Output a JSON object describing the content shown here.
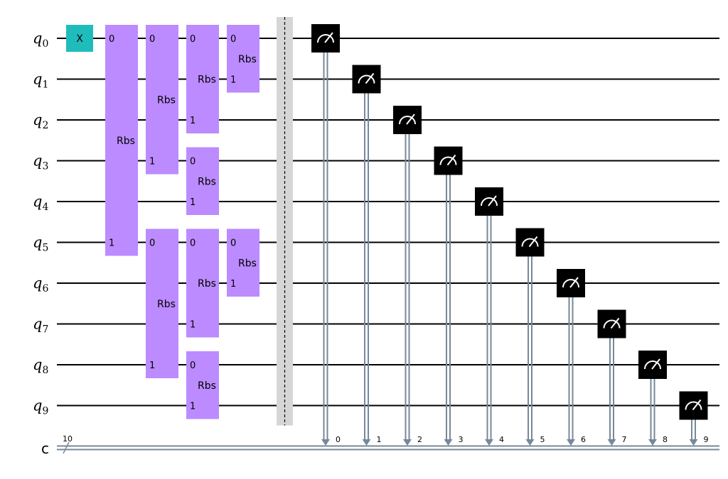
{
  "circuit": {
    "qubits": [
      {
        "name": "q",
        "index": "0"
      },
      {
        "name": "q",
        "index": "1"
      },
      {
        "name": "q",
        "index": "2"
      },
      {
        "name": "q",
        "index": "3"
      },
      {
        "name": "q",
        "index": "4"
      },
      {
        "name": "q",
        "index": "5"
      },
      {
        "name": "q",
        "index": "6"
      },
      {
        "name": "q",
        "index": "7"
      },
      {
        "name": "q",
        "index": "8"
      },
      {
        "name": "q",
        "index": "9"
      }
    ],
    "classical_register": {
      "name": "c",
      "size": "10"
    },
    "x_gate": {
      "label": "X",
      "qubit": 0
    },
    "rbs_gates": [
      {
        "label": "Rbs",
        "top": 0,
        "bottom": 5,
        "layer": 0,
        "port_top": "0",
        "port_bottom": "1"
      },
      {
        "label": "Rbs",
        "top": 0,
        "bottom": 3,
        "layer": 1,
        "port_top": "0",
        "port_bottom": "1"
      },
      {
        "label": "Rbs",
        "top": 5,
        "bottom": 8,
        "layer": 1,
        "port_top": "0",
        "port_bottom": "1"
      },
      {
        "label": "Rbs",
        "top": 0,
        "bottom": 2,
        "layer": 2,
        "port_top": "0",
        "port_bottom": "1"
      },
      {
        "label": "Rbs",
        "top": 3,
        "bottom": 4,
        "layer": 2,
        "port_top": "0",
        "port_bottom": "1"
      },
      {
        "label": "Rbs",
        "top": 5,
        "bottom": 7,
        "layer": 2,
        "port_top": "0",
        "port_bottom": "1"
      },
      {
        "label": "Rbs",
        "top": 8,
        "bottom": 9,
        "layer": 2,
        "port_top": "0",
        "port_bottom": "1"
      },
      {
        "label": "Rbs",
        "top": 0,
        "bottom": 1,
        "layer": 3,
        "port_top": "0",
        "port_bottom": "1"
      },
      {
        "label": "Rbs",
        "top": 5,
        "bottom": 6,
        "layer": 3,
        "port_top": "0",
        "port_bottom": "1"
      }
    ],
    "measurements": [
      {
        "qubit": 0,
        "bit": "0"
      },
      {
        "qubit": 1,
        "bit": "1"
      },
      {
        "qubit": 2,
        "bit": "2"
      },
      {
        "qubit": 3,
        "bit": "3"
      },
      {
        "qubit": 4,
        "bit": "4"
      },
      {
        "qubit": 5,
        "bit": "5"
      },
      {
        "qubit": 6,
        "bit": "6"
      },
      {
        "qubit": 7,
        "bit": "7"
      },
      {
        "qubit": 8,
        "bit": "8"
      },
      {
        "qubit": 9,
        "bit": "9"
      }
    ],
    "colors": {
      "x_gate": "#1fbcbc",
      "rbs_gate": "#bb8bff",
      "measure": "#000000",
      "classical_wire": "#778899",
      "barrier": "#d6d6d6",
      "wire": "#000000"
    }
  }
}
